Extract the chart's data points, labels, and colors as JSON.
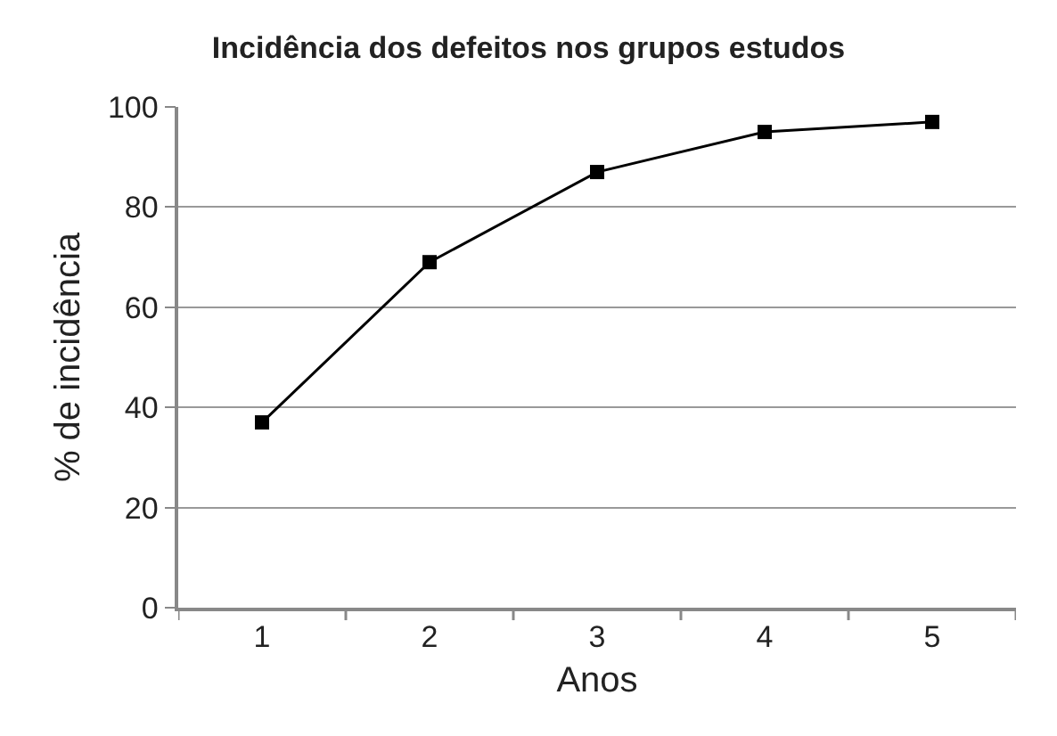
{
  "chart_data": {
    "type": "line",
    "title": "Incidência dos defeitos nos grupos estudos",
    "xlabel": "Anos",
    "ylabel": "% de incidência",
    "categories": [
      "1",
      "2",
      "3",
      "4",
      "5"
    ],
    "series": [
      {
        "color": "#000000",
        "values": [
          37,
          69,
          87,
          95,
          97
        ]
      }
    ],
    "ylim": [
      0,
      100
    ],
    "yticks": [
      0,
      20,
      40,
      60,
      80,
      100
    ],
    "grid": "y",
    "marker": "square",
    "line_style": "solid"
  }
}
